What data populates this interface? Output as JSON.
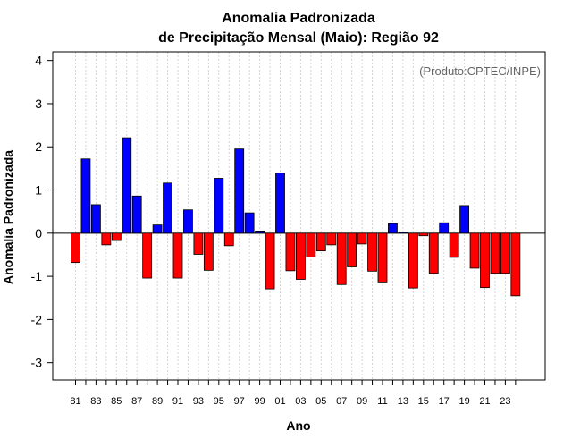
{
  "chart_data": {
    "type": "bar",
    "title_line1": "Anomalia Padronizada",
    "title_line2": "de Precipitação Mensal (Maio): Região 92",
    "xlabel": "Ano",
    "ylabel": "Anomalia Padronizada",
    "credit": "(Produto:CPTEC/INPE)",
    "ylim": [
      -3.4,
      4.2
    ],
    "yticks": [
      -3,
      -2,
      -1,
      0,
      1,
      2,
      3,
      4
    ],
    "categories": [
      "81",
      "82",
      "83",
      "84",
      "85",
      "86",
      "87",
      "88",
      "89",
      "90",
      "91",
      "92",
      "93",
      "94",
      "95",
      "96",
      "97",
      "98",
      "99",
      "00",
      "01",
      "02",
      "03",
      "04",
      "05",
      "06",
      "07",
      "08",
      "09",
      "10",
      "11",
      "12",
      "13",
      "14",
      "15",
      "16",
      "17",
      "18",
      "19",
      "20",
      "21",
      "22",
      "23",
      "24"
    ],
    "xtick_labels": [
      "81",
      "83",
      "85",
      "87",
      "89",
      "91",
      "93",
      "95",
      "97",
      "99",
      "01",
      "03",
      "05",
      "07",
      "09",
      "11",
      "13",
      "15",
      "17",
      "19",
      "21",
      "23"
    ],
    "values": [
      -0.68,
      1.72,
      0.66,
      -0.27,
      -0.17,
      2.21,
      0.86,
      -1.04,
      0.19,
      1.16,
      -1.04,
      0.54,
      -0.49,
      -0.86,
      1.27,
      -0.29,
      1.95,
      0.47,
      0.05,
      -1.29,
      1.39,
      -0.87,
      -1.07,
      -0.55,
      -0.41,
      -0.27,
      -1.19,
      -0.78,
      -0.25,
      -0.88,
      -1.13,
      0.22,
      0.02,
      -1.27,
      -0.06,
      -0.93,
      0.24,
      -0.56,
      0.64,
      -0.81,
      -1.26,
      -0.93,
      -0.93,
      -1.45
    ],
    "grid": true,
    "colors": {
      "positive": "#0000ff",
      "negative": "#ff0000",
      "outline": "#000000",
      "grid": "#d3d3d3"
    }
  }
}
